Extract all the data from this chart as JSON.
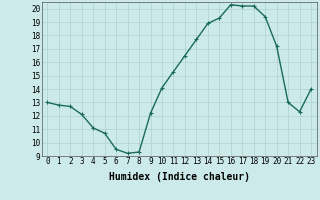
{
  "x": [
    0,
    1,
    2,
    3,
    4,
    5,
    6,
    7,
    8,
    9,
    10,
    11,
    12,
    13,
    14,
    15,
    16,
    17,
    18,
    19,
    20,
    21,
    22,
    23
  ],
  "y": [
    13,
    12.8,
    12.7,
    12.1,
    11.1,
    10.7,
    9.5,
    9.2,
    9.3,
    12.2,
    14.1,
    15.3,
    16.5,
    17.7,
    18.9,
    19.3,
    20.3,
    20.2,
    20.2,
    19.4,
    17.2,
    13.0,
    12.3,
    14.0
  ],
  "line_color": "#1a6b5a",
  "marker": "+",
  "marker_size": 3,
  "line_width": 1.0,
  "xlabel": "Humidex (Indice chaleur)",
  "xlim": [
    -0.5,
    23.5
  ],
  "ylim": [
    9,
    20.5
  ],
  "yticks": [
    9,
    10,
    11,
    12,
    13,
    14,
    15,
    16,
    17,
    18,
    19,
    20
  ],
  "xticks": [
    0,
    1,
    2,
    3,
    4,
    5,
    6,
    7,
    8,
    9,
    10,
    11,
    12,
    13,
    14,
    15,
    16,
    17,
    18,
    19,
    20,
    21,
    22,
    23
  ],
  "xtick_labels": [
    "0",
    "1",
    "2",
    "3",
    "4",
    "5",
    "6",
    "7",
    "8",
    "9",
    "10",
    "11",
    "12",
    "13",
    "14",
    "15",
    "16",
    "17",
    "18",
    "19",
    "20",
    "21",
    "22",
    "23"
  ],
  "bg_color": "#cceaea",
  "grid_color": "#b0d0d0",
  "tick_label_size": 5.5,
  "xlabel_size": 7,
  "marker_edge_width": 0.8
}
